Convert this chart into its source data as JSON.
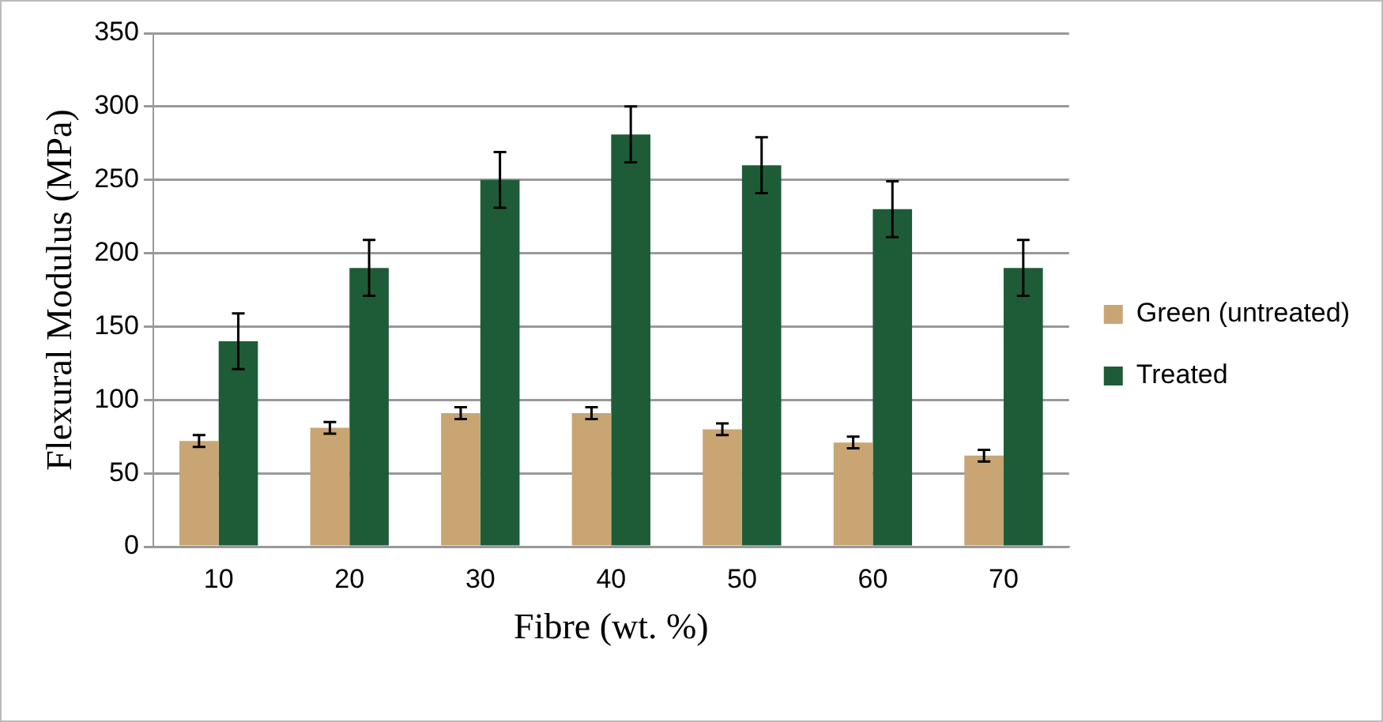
{
  "chart_data": {
    "type": "bar",
    "xlabel": "Fibre (wt. %)",
    "ylabel": "Flexural Modulus (MPa)",
    "categories": [
      "10",
      "20",
      "30",
      "40",
      "50",
      "60",
      "70"
    ],
    "series": [
      {
        "name": "Green (untreated)",
        "color": "#c9a574",
        "values": [
          72,
          81,
          91,
          91,
          80,
          71,
          62
        ],
        "errors": [
          4,
          4,
          4,
          4,
          4,
          4,
          4
        ]
      },
      {
        "name": "Treated",
        "color": "#1e5c38",
        "values": [
          140,
          190,
          250,
          281,
          260,
          230,
          190
        ],
        "errors": [
          19,
          19,
          19,
          19,
          19,
          19,
          19
        ]
      }
    ],
    "ylim": [
      0,
      350
    ],
    "yticks": [
      0,
      50,
      100,
      150,
      200,
      250,
      300,
      350
    ],
    "grid": "y",
    "legend": "right"
  }
}
